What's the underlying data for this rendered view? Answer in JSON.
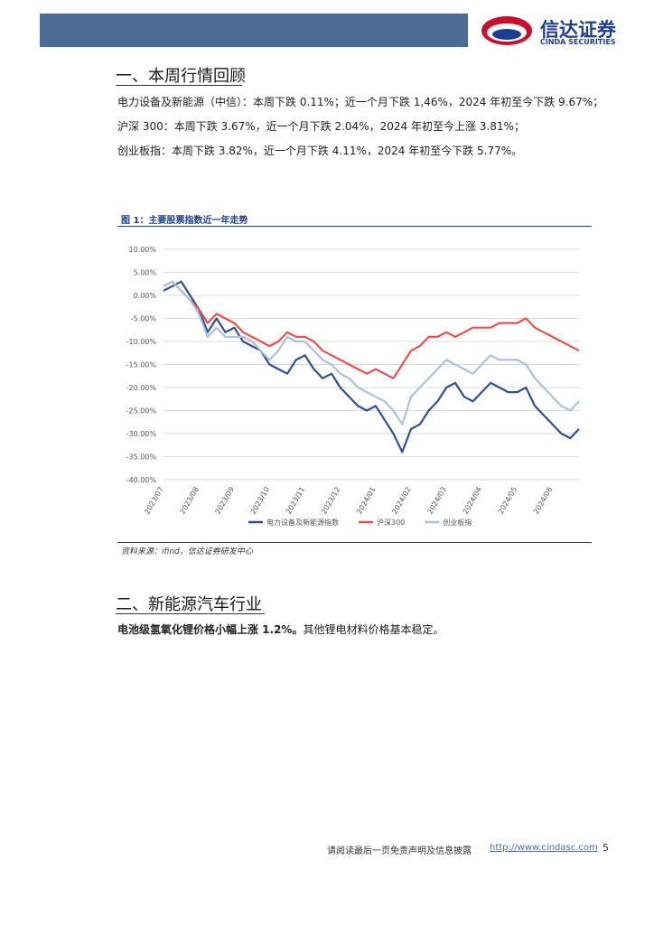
{
  "header": {
    "logo_cn": "信达证券",
    "logo_en": "CINDA SECURITIES"
  },
  "sections": [
    {
      "title": "一、本周行情回顾",
      "paragraphs": [
        "电力设备及新能源（中信）：本周下跌 0.11%；近一个月下跌 1,46%，2024 年初至今下跌 9.67%；",
        "沪深 300：本周下跌 3.67%，近一个月下跌 2.04%，2024 年初至今上涨 3.81%；",
        "创业板指：本周下跌 3.82%，近一个月下跌 4.11%，2024 年初至今下跌 5.77%。"
      ]
    },
    {
      "title": "二、新能源汽车行业",
      "paragraph_bold": "电池级氢氧化锂价格小幅上涨 1.2%。",
      "paragraph_rest": "其他锂电材料价格基本稳定。"
    }
  ],
  "figure": {
    "title": "图 1：主要股票指数近一年走势",
    "source": "资料来源：ifind，信达证券研发中心"
  },
  "chart_data": {
    "type": "line",
    "categories": [
      "2023/07",
      null,
      null,
      null,
      "2023/08",
      null,
      null,
      null,
      "2023/09",
      null,
      null,
      null,
      "2023/10",
      null,
      null,
      null,
      "2023/11",
      null,
      null,
      null,
      "2023/12",
      null,
      null,
      null,
      "2024/01",
      null,
      null,
      null,
      "2024/02",
      null,
      null,
      null,
      "2024/03",
      null,
      null,
      null,
      "2024/04",
      null,
      null,
      null,
      "2024/05",
      null,
      null,
      null,
      "2024/06",
      null,
      null,
      null
    ],
    "series": [
      {
        "name": "电力设备及新能源指数",
        "color": "#2f4f8f",
        "values": [
          1,
          2,
          3,
          0,
          -3,
          -8,
          -5,
          -8,
          -7,
          -10,
          -11,
          -12,
          -15,
          -16,
          -17,
          -14,
          -13,
          -16,
          -18,
          -17,
          -20,
          -22,
          -24,
          -25,
          -24,
          -27,
          -30,
          -34,
          -29,
          -28,
          -25,
          -23,
          -20,
          -19,
          -22,
          -23,
          -21,
          -19,
          -20,
          -21,
          -21,
          -20,
          -24,
          -26,
          -28,
          -30,
          -31,
          -29
        ]
      },
      {
        "name": "沪深300",
        "color": "#e8504f",
        "values": [
          2,
          3,
          1,
          -1,
          -3,
          -6,
          -4,
          -5,
          -6,
          -8,
          -9,
          -10,
          -11,
          -10,
          -8,
          -9,
          -9,
          -10,
          -12,
          -13,
          -14,
          -15,
          -16,
          -17,
          -16,
          -17,
          -18,
          -15,
          -12,
          -11,
          -9,
          -9,
          -8,
          -9,
          -8,
          -7,
          -7,
          -7,
          -6,
          -6,
          -6,
          -5,
          -7,
          -8,
          -9,
          -10,
          -11,
          -12
        ]
      },
      {
        "name": "创业板指",
        "color": "#aebfdd",
        "values": [
          2,
          3,
          1,
          -1,
          -4,
          -9,
          -7,
          -9,
          -9,
          -9,
          -10,
          -12,
          -14,
          -12,
          -9,
          -10,
          -10,
          -12,
          -14,
          -15,
          -17,
          -18,
          -20,
          -21,
          -22,
          -23,
          -25,
          -28,
          -22,
          -20,
          -18,
          -16,
          -14,
          -15,
          -16,
          -17,
          -15,
          -13,
          -14,
          -14,
          -14,
          -15,
          -18,
          -20,
          -22,
          -24,
          -25,
          -23
        ]
      }
    ],
    "ylim": [
      -40,
      10
    ],
    "yticks": [
      {
        "value": 10,
        "label": "10.00%"
      },
      {
        "value": 5,
        "label": "5.00%"
      },
      {
        "value": 0,
        "label": "0.00%"
      },
      {
        "value": -5,
        "label": "-5.00%"
      },
      {
        "value": -10,
        "label": "-10.00%"
      },
      {
        "value": -15,
        "label": "-15.00%"
      },
      {
        "value": -20,
        "label": "-20.00%"
      },
      {
        "value": -25,
        "label": "-25.00%"
      },
      {
        "value": -30,
        "label": "-30.00%"
      },
      {
        "value": -35,
        "label": "-35.00%"
      },
      {
        "value": -40,
        "label": "-40.00%"
      }
    ],
    "grid": true,
    "legend": "bottom"
  },
  "footer": {
    "disclaimer": "请阅读最后一页免责声明及信息披露",
    "url": "http://www.cindasc.com",
    "page": "5"
  }
}
